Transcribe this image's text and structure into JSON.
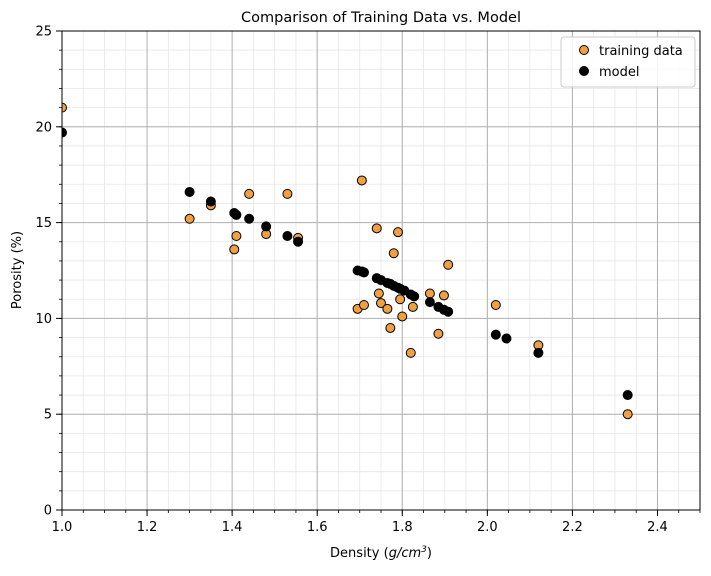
{
  "chart_data": {
    "type": "scatter",
    "title": "Comparison of Training Data vs. Model",
    "xlabel_main": "Density (",
    "xlabel_unit_base": "g/cm",
    "xlabel_unit_exp": "3",
    "xlabel_close": ")",
    "ylabel": "Porosity (%)",
    "xlim": [
      1.0,
      2.5
    ],
    "ylim": [
      0,
      25
    ],
    "x_ticks": [
      1.0,
      1.2,
      1.4,
      1.6,
      1.8,
      2.0,
      2.2,
      2.4
    ],
    "x_tick_labels": [
      "1.0",
      "1.2",
      "1.4",
      "1.6",
      "1.8",
      "2.0",
      "2.2",
      "2.4"
    ],
    "y_ticks": [
      0,
      5,
      10,
      15,
      20,
      25
    ],
    "y_tick_labels": [
      "0",
      "5",
      "10",
      "15",
      "20",
      "25"
    ],
    "grid": true,
    "legend_position": "top-right",
    "series": [
      {
        "name": "training data",
        "color": "#f0a040",
        "edge": "#000000",
        "points": [
          [
            1.0,
            21.0
          ],
          [
            1.3,
            15.2
          ],
          [
            1.35,
            15.9
          ],
          [
            1.405,
            13.6
          ],
          [
            1.41,
            14.3
          ],
          [
            1.44,
            16.5
          ],
          [
            1.48,
            14.4
          ],
          [
            1.53,
            16.5
          ],
          [
            1.555,
            14.2
          ],
          [
            1.695,
            10.5
          ],
          [
            1.705,
            17.2
          ],
          [
            1.71,
            10.7
          ],
          [
            1.74,
            14.7
          ],
          [
            1.745,
            11.3
          ],
          [
            1.75,
            10.8
          ],
          [
            1.765,
            10.5
          ],
          [
            1.772,
            9.5
          ],
          [
            1.78,
            13.4
          ],
          [
            1.79,
            14.5
          ],
          [
            1.795,
            11.0
          ],
          [
            1.8,
            10.1
          ],
          [
            1.82,
            8.2
          ],
          [
            1.825,
            10.6
          ],
          [
            1.865,
            11.3
          ],
          [
            1.885,
            9.2
          ],
          [
            1.898,
            11.2
          ],
          [
            1.908,
            12.8
          ],
          [
            2.02,
            10.7
          ],
          [
            2.12,
            8.6
          ],
          [
            2.33,
            5.0
          ]
        ]
      },
      {
        "name": "model",
        "color": "#000000",
        "edge": "#000000",
        "points": [
          [
            1.0,
            19.7
          ],
          [
            1.3,
            16.6
          ],
          [
            1.35,
            16.1
          ],
          [
            1.405,
            15.5
          ],
          [
            1.41,
            15.4
          ],
          [
            1.44,
            15.2
          ],
          [
            1.48,
            14.8
          ],
          [
            1.53,
            14.3
          ],
          [
            1.555,
            14.0
          ],
          [
            1.695,
            12.5
          ],
          [
            1.705,
            12.45
          ],
          [
            1.71,
            12.4
          ],
          [
            1.74,
            12.1
          ],
          [
            1.75,
            12.0
          ],
          [
            1.765,
            11.85
          ],
          [
            1.772,
            11.8
          ],
          [
            1.78,
            11.7
          ],
          [
            1.79,
            11.6
          ],
          [
            1.795,
            11.55
          ],
          [
            1.805,
            11.45
          ],
          [
            1.82,
            11.25
          ],
          [
            1.828,
            11.15
          ],
          [
            1.865,
            10.85
          ],
          [
            1.885,
            10.6
          ],
          [
            1.898,
            10.45
          ],
          [
            1.908,
            10.35
          ],
          [
            2.02,
            9.15
          ],
          [
            2.045,
            8.95
          ],
          [
            2.12,
            8.2
          ],
          [
            2.33,
            6.0
          ]
        ]
      }
    ]
  }
}
